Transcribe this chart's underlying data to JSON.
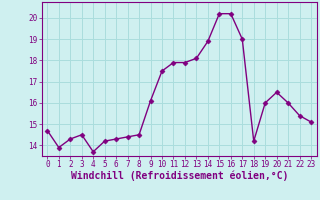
{
  "hours": [
    0,
    1,
    2,
    3,
    4,
    5,
    6,
    7,
    8,
    9,
    10,
    11,
    12,
    13,
    14,
    15,
    16,
    17,
    18,
    19,
    20,
    21,
    22,
    23
  ],
  "values": [
    14.7,
    13.9,
    14.3,
    14.5,
    13.7,
    14.2,
    14.3,
    14.4,
    14.5,
    16.1,
    17.5,
    17.9,
    17.9,
    18.1,
    18.9,
    20.2,
    20.2,
    19.0,
    14.2,
    16.0,
    16.5,
    16.0,
    15.4,
    15.1
  ],
  "line_color": "#800080",
  "marker": "D",
  "marker_size": 2.5,
  "bg_color": "#cff0f0",
  "grid_color": "#aadddd",
  "xlabel": "Windchill (Refroidissement éolien,°C)",
  "ylim": [
    13.5,
    20.75
  ],
  "yticks": [
    14,
    15,
    16,
    17,
    18,
    19,
    20
  ],
  "line_width": 1.0,
  "tick_fontsize": 5.5,
  "xlabel_fontsize": 7.0
}
